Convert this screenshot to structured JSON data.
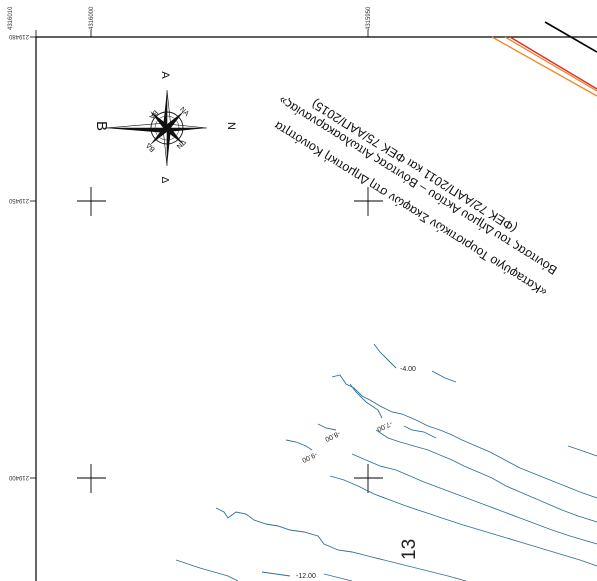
{
  "map": {
    "colors": {
      "contour": "#2f6f95",
      "frame": "#000000",
      "boundary_red": "#e0302a",
      "boundary_orange": "#e8892c"
    },
    "coords_top": [
      "4316010",
      "4316000",
      "4315950"
    ],
    "coords_left": [
      "219480",
      "219450",
      "219400"
    ],
    "compass": {
      "north": "A",
      "west": "B",
      "east": "N",
      "south": "Δ",
      "intercardinals": [
        "ΒΑ",
        "ΝΑ",
        "ΒΔ",
        "ΝΔ"
      ]
    },
    "title": {
      "line1": "«Κατaφύγιο Τουριστικών Σκαφών στη Δημοτική Κοινότητα",
      "line2": "Βόνιτσας του Δήμου Ακτίου – Βόνιτσας Αιτωλοακαρνανίας»",
      "line3": "(ΦΕΚ 72/ΑΑΠ/2011 και ΦΕΚ 75/ΑΑΠ/2015)"
    },
    "contour_labels": [
      "-4.00",
      "-7.00",
      "-8.00",
      "-9.00",
      "-12.00"
    ],
    "sheet_number": "13"
  }
}
